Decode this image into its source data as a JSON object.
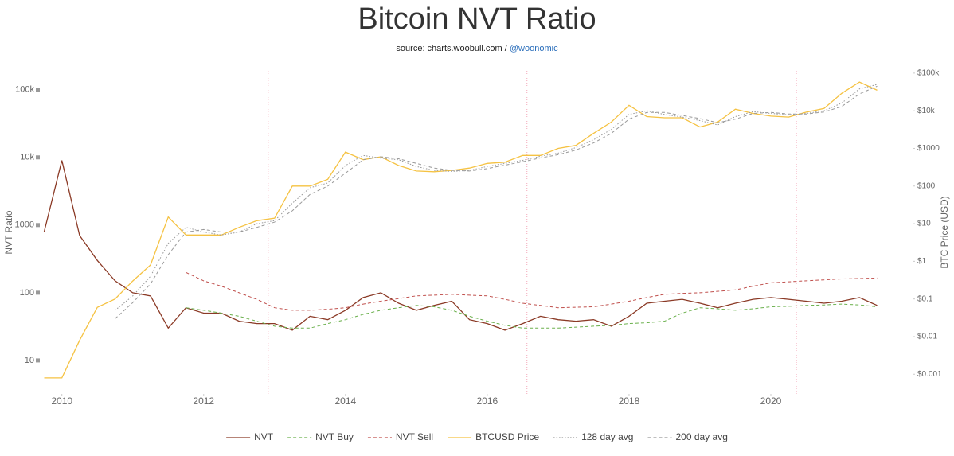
{
  "chart_data": {
    "type": "line",
    "title": "Bitcoin NVT Ratio",
    "subtitle_source": "source: charts.woobull.com / ",
    "subtitle_handle": "@woonomic",
    "y_label": "NVT Ratio",
    "y2_label": "BTC Price (USD)",
    "ylog": true,
    "y2log": true,
    "xlim": [
      2009.7,
      2021.55
    ],
    "xticks": [
      2010,
      2012,
      2014,
      2016,
      2018,
      2020
    ],
    "ylim": [
      3.2,
      190000
    ],
    "yticks": [
      10,
      100,
      1000,
      {
        "value": 10000,
        "label": "10k"
      },
      {
        "value": 100000,
        "label": "100k"
      }
    ],
    "y2lim": [
      0.0003,
      115000
    ],
    "y2ticks": [
      {
        "value": 100000,
        "label": "$100k"
      },
      {
        "value": 10000,
        "label": "$10k"
      },
      {
        "value": 1000,
        "label": "$1000"
      },
      {
        "value": 100,
        "label": "$100"
      },
      {
        "value": 10,
        "label": "$10"
      },
      {
        "value": 1,
        "label": "$1"
      },
      {
        "value": 0.1,
        "label": "$0.1"
      },
      {
        "value": 0.01,
        "label": "$0.01"
      },
      {
        "value": 0.001,
        "label": "$0.001"
      }
    ],
    "halvings": [
      2012.91,
      2016.56,
      2020.36
    ],
    "halving_color": "#f4a6b8",
    "x": [
      2009.75,
      2010,
      2010.25,
      2010.5,
      2010.75,
      2011,
      2011.25,
      2011.5,
      2011.75,
      2012,
      2012.25,
      2012.5,
      2012.75,
      2013,
      2013.25,
      2013.5,
      2013.75,
      2014,
      2014.25,
      2014.5,
      2014.75,
      2015,
      2015.25,
      2015.5,
      2015.75,
      2016,
      2016.25,
      2016.5,
      2016.75,
      2017,
      2017.25,
      2017.5,
      2017.75,
      2018,
      2018.25,
      2018.5,
      2018.75,
      2019,
      2019.25,
      2019.5,
      2019.75,
      2020,
      2020.25,
      2020.5,
      2020.75,
      2021,
      2021.25,
      2021.5
    ],
    "series": [
      {
        "name": "NVT",
        "color": "#8b3a26",
        "dash": "solid",
        "axis": "y",
        "values": [
          800,
          9000,
          700,
          300,
          150,
          100,
          90,
          30,
          60,
          50,
          50,
          38,
          35,
          35,
          28,
          45,
          40,
          55,
          85,
          100,
          70,
          55,
          65,
          75,
          40,
          35,
          28,
          35,
          45,
          40,
          38,
          40,
          32,
          45,
          70,
          75,
          80,
          70,
          60,
          70,
          80,
          85,
          80,
          75,
          70,
          75,
          85,
          65
        ]
      },
      {
        "name": "NVT Buy",
        "color": "#6ab04c",
        "dash": "dashed",
        "axis": "y",
        "values": [
          null,
          null,
          null,
          null,
          null,
          null,
          null,
          null,
          60,
          55,
          50,
          45,
          38,
          32,
          30,
          30,
          35,
          40,
          48,
          55,
          60,
          65,
          62,
          55,
          45,
          38,
          33,
          30,
          30,
          30,
          31,
          32,
          33,
          35,
          36,
          38,
          50,
          60,
          58,
          55,
          58,
          62,
          63,
          65,
          66,
          68,
          66,
          62
        ]
      },
      {
        "name": "NVT Sell",
        "color": "#c0504d",
        "dash": "dashed",
        "axis": "y",
        "values": [
          null,
          null,
          null,
          null,
          null,
          null,
          null,
          null,
          200,
          150,
          125,
          100,
          80,
          60,
          55,
          55,
          57,
          60,
          68,
          75,
          82,
          90,
          92,
          95,
          92,
          90,
          80,
          70,
          65,
          60,
          61,
          62,
          68,
          75,
          85,
          95,
          98,
          100,
          105,
          110,
          125,
          140,
          145,
          150,
          155,
          160,
          162,
          165
        ]
      },
      {
        "name": "BTCUSD Price",
        "color": "#f5c242",
        "dash": "solid",
        "axis": "y2",
        "values": [
          0.0008,
          0.0008,
          0.008,
          0.06,
          0.1,
          0.3,
          0.8,
          15,
          5,
          5,
          5,
          8,
          12,
          14,
          100,
          100,
          150,
          800,
          500,
          600,
          350,
          250,
          240,
          260,
          300,
          400,
          430,
          650,
          650,
          1000,
          1200,
          2500,
          5000,
          14000,
          7000,
          6500,
          6500,
          3700,
          5000,
          11000,
          8500,
          7200,
          6800,
          9200,
          11500,
          29000,
          58000,
          35000
        ]
      },
      {
        "name": "128 day avg",
        "color": "#999999",
        "dash": "dotted",
        "axis": "y2",
        "values": [
          null,
          null,
          null,
          null,
          0.05,
          0.12,
          0.4,
          3,
          8,
          6,
          5,
          6,
          10,
          12,
          35,
          90,
          120,
          350,
          650,
          550,
          500,
          330,
          260,
          245,
          260,
          330,
          400,
          480,
          620,
          750,
          1050,
          1700,
          3200,
          8000,
          10000,
          8000,
          6800,
          5500,
          4200,
          7000,
          9500,
          8500,
          7800,
          8500,
          10000,
          16000,
          38000,
          50000
        ]
      },
      {
        "name": "200 day avg",
        "color": "#999999",
        "dash": "dashed",
        "axis": "y2",
        "values": [
          null,
          null,
          null,
          null,
          0.03,
          0.08,
          0.25,
          1.5,
          6,
          7,
          6,
          6,
          8,
          11,
          22,
          60,
          100,
          220,
          500,
          600,
          530,
          400,
          300,
          260,
          250,
          290,
          360,
          440,
          560,
          680,
          900,
          1400,
          2500,
          6000,
          9000,
          9000,
          7500,
          6200,
          4800,
          6000,
          8500,
          9000,
          8200,
          8200,
          9300,
          13000,
          28000,
          45000
        ]
      }
    ]
  }
}
